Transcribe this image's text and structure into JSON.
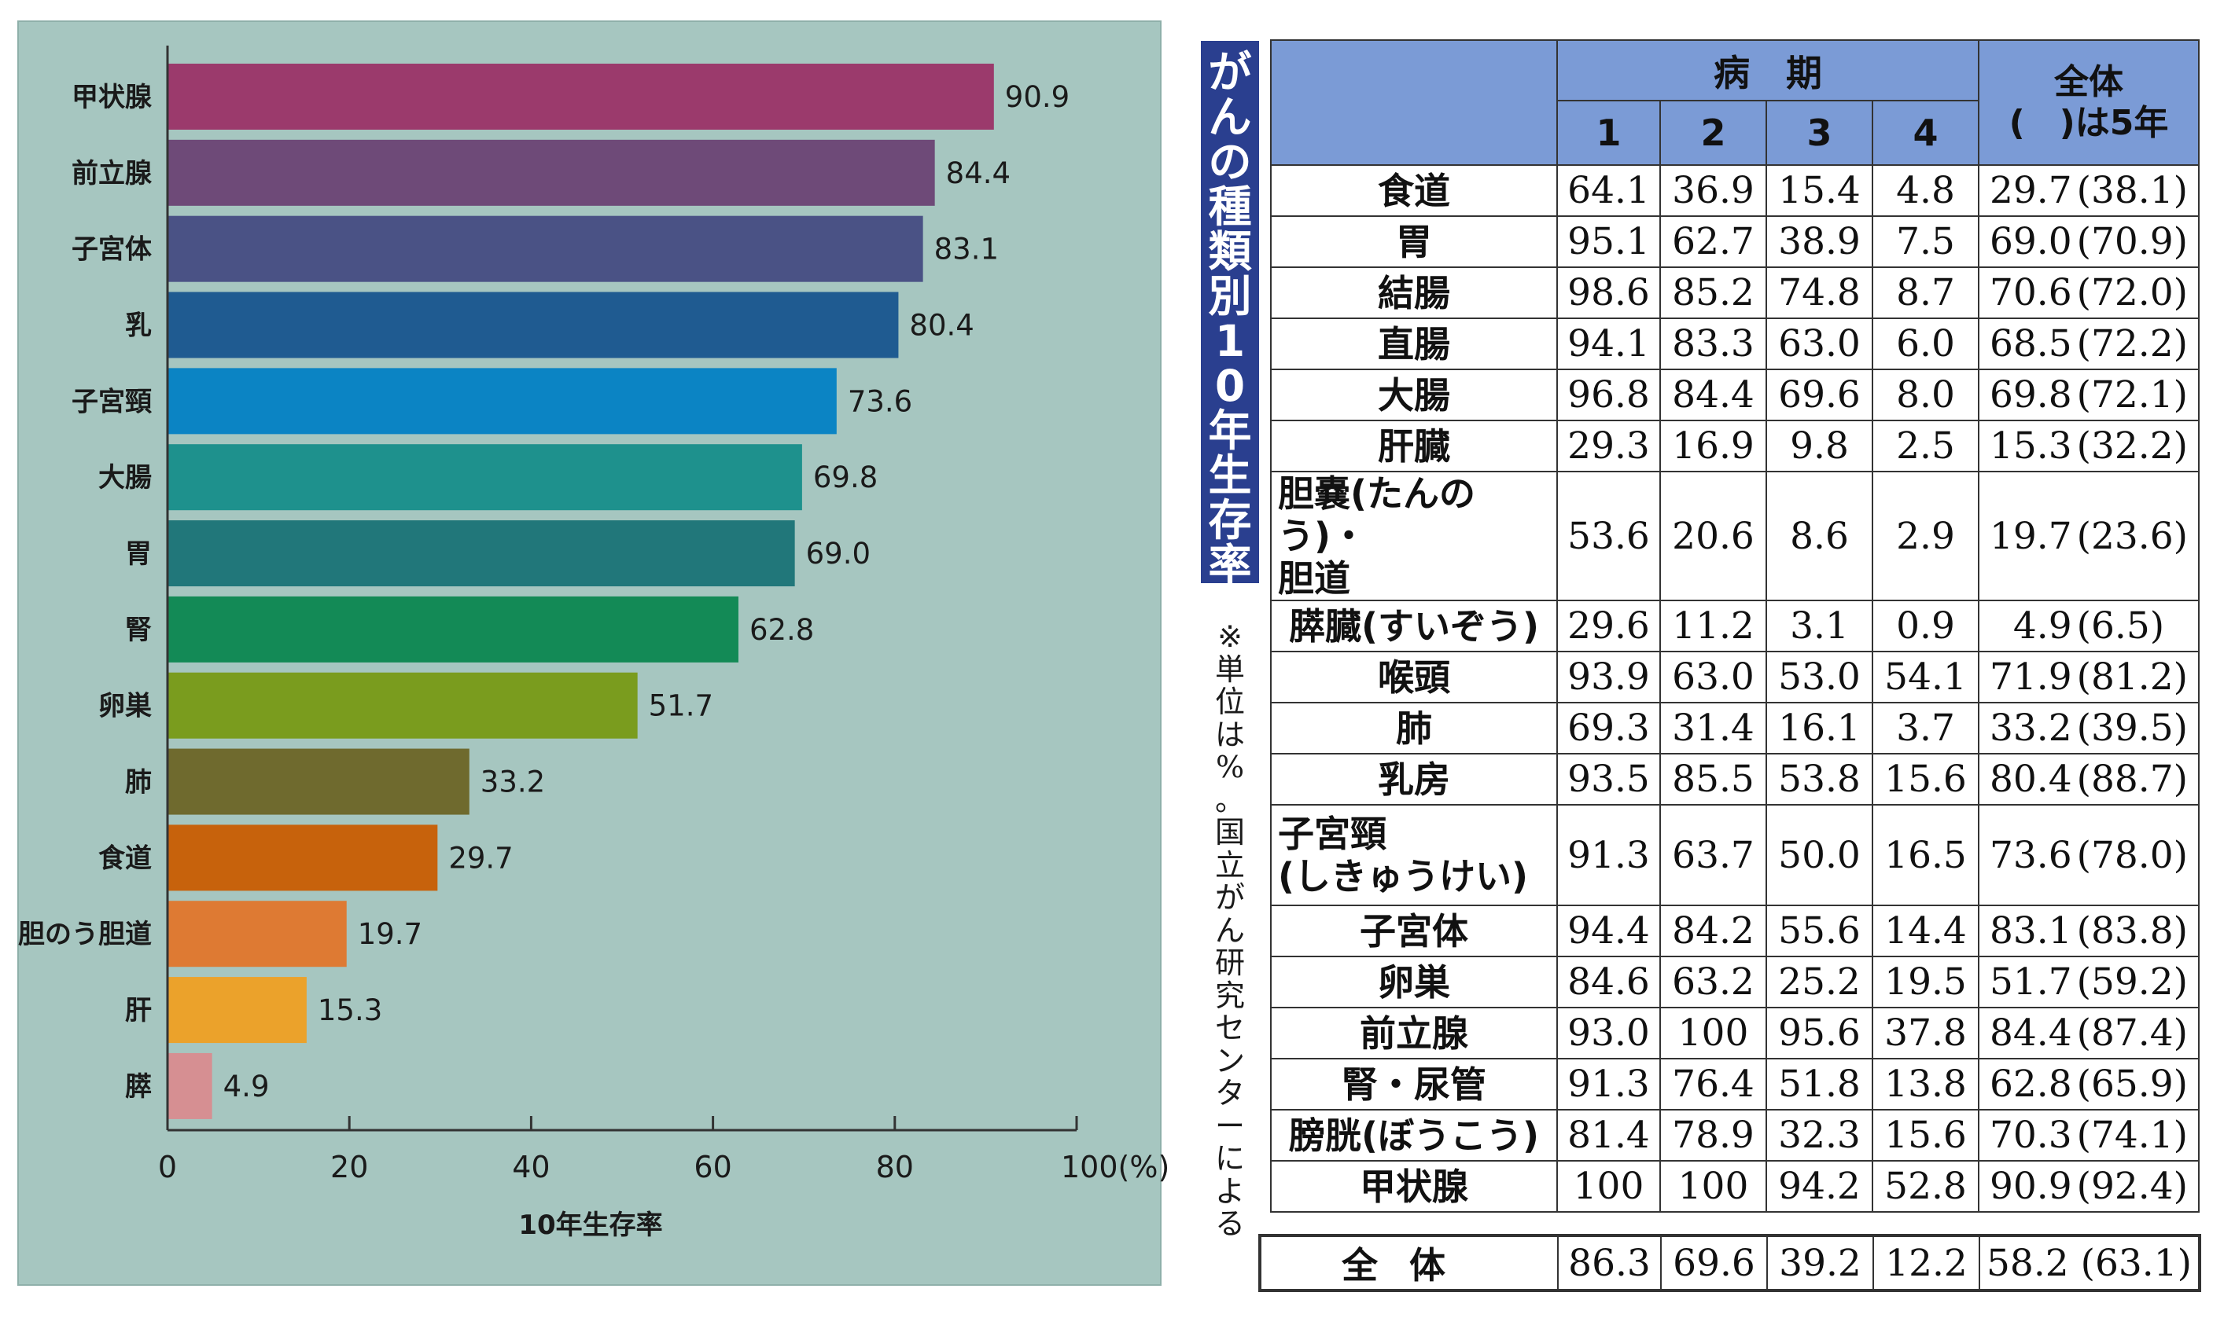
{
  "chart_data": {
    "type": "bar",
    "orientation": "horizontal",
    "categories": [
      "甲状腺",
      "前立腺",
      "子宮体",
      "乳",
      "子宮頸",
      "大腸",
      "胃",
      "腎",
      "卵巣",
      "肺",
      "食道",
      "胆のう胆道",
      "肝",
      "膵"
    ],
    "values": [
      90.9,
      84.4,
      83.1,
      80.4,
      73.6,
      69.8,
      69.0,
      62.8,
      51.7,
      33.2,
      29.7,
      19.7,
      15.3,
      4.9
    ],
    "value_labels": [
      "90.9",
      "84.4",
      "83.1",
      "80.4",
      "73.6",
      "69.8",
      "69.0",
      "62.8",
      "51.7",
      "33.2",
      "29.7",
      "19.7",
      "15.3",
      "4.9"
    ],
    "colors": [
      "#9b3a6c",
      "#6e4a78",
      "#4a5285",
      "#1f5b91",
      "#0b84c4",
      "#1e918d",
      "#21777a",
      "#138a56",
      "#7a9c1e",
      "#6f6a2e",
      "#c7620c",
      "#de7a33",
      "#eba22b",
      "#d68f92"
    ],
    "xticks": [
      "0",
      "20",
      "40",
      "60",
      "80",
      "100(%)"
    ],
    "xlim": [
      0,
      100
    ],
    "xlabel": "10年生存率",
    "ylabel": "",
    "title": "",
    "grid": false
  },
  "table": {
    "title_chars": [
      "が",
      "ん",
      "の",
      "種",
      "類",
      "別",
      "1",
      "0",
      "年",
      "生",
      "存",
      "率"
    ],
    "note_chars": [
      "※",
      "単",
      "位",
      "は",
      "%",
      "。",
      "国",
      "立",
      "が",
      "ん",
      "研",
      "究",
      "セ",
      "ン",
      "タ",
      "ー",
      "に",
      "よ",
      "る"
    ],
    "header": {
      "stage_label": "病　期",
      "stages": [
        "1",
        "2",
        "3",
        "4"
      ],
      "total_line1": "全体",
      "total_line2": "(　)は5年"
    },
    "rows": [
      {
        "name": "食道",
        "s1": "64.1",
        "s2": "36.9",
        "s3": "15.4",
        "s4": "4.8",
        "total": "29.7",
        "five": "(38.1)"
      },
      {
        "name": "胃",
        "s1": "95.1",
        "s2": "62.7",
        "s3": "38.9",
        "s4": "7.5",
        "total": "69.0",
        "five": "(70.9)"
      },
      {
        "name": "結腸",
        "s1": "98.6",
        "s2": "85.2",
        "s3": "74.8",
        "s4": "8.7",
        "total": "70.6",
        "five": "(72.0)"
      },
      {
        "name": "直腸",
        "s1": "94.1",
        "s2": "83.3",
        "s3": "63.0",
        "s4": "6.0",
        "total": "68.5",
        "five": "(72.2)"
      },
      {
        "name": "大腸",
        "s1": "96.8",
        "s2": "84.4",
        "s3": "69.6",
        "s4": "8.0",
        "total": "69.8",
        "five": "(72.1)"
      },
      {
        "name": "肝臓",
        "s1": "29.3",
        "s2": "16.9",
        "s3": "9.8",
        "s4": "2.5",
        "total": "15.3",
        "five": "(32.2)"
      },
      {
        "name": "胆嚢(たんのう)・",
        "name2": "胆道",
        "s1": "53.6",
        "s2": "20.6",
        "s3": "8.6",
        "s4": "2.9",
        "total": "19.7",
        "five": "(23.6)"
      },
      {
        "name": "膵臓(すいぞう)",
        "s1": "29.6",
        "s2": "11.2",
        "s3": "3.1",
        "s4": "0.9",
        "total": "4.9",
        "five": "(6.5)"
      },
      {
        "name": "喉頭",
        "s1": "93.9",
        "s2": "63.0",
        "s3": "53.0",
        "s4": "54.1",
        "total": "71.9",
        "five": "(81.2)"
      },
      {
        "name": "肺",
        "s1": "69.3",
        "s2": "31.4",
        "s3": "16.1",
        "s4": "3.7",
        "total": "33.2",
        "five": "(39.5)"
      },
      {
        "name": "乳房",
        "s1": "93.5",
        "s2": "85.5",
        "s3": "53.8",
        "s4": "15.6",
        "total": "80.4",
        "five": "(88.7)"
      },
      {
        "name": "子宮頸",
        "name2": "(しきゅうけい)",
        "s1": "91.3",
        "s2": "63.7",
        "s3": "50.0",
        "s4": "16.5",
        "total": "73.6",
        "five": "(78.0)"
      },
      {
        "name": "子宮体",
        "s1": "94.4",
        "s2": "84.2",
        "s3": "55.6",
        "s4": "14.4",
        "total": "83.1",
        "five": "(83.8)"
      },
      {
        "name": "卵巣",
        "s1": "84.6",
        "s2": "63.2",
        "s3": "25.2",
        "s4": "19.5",
        "total": "51.7",
        "five": "(59.2)"
      },
      {
        "name": "前立腺",
        "s1": "93.0",
        "s2": "100",
        "s3": "95.6",
        "s4": "37.8",
        "total": "84.4",
        "five": "(87.4)"
      },
      {
        "name": "腎・尿管",
        "s1": "91.3",
        "s2": "76.4",
        "s3": "51.8",
        "s4": "13.8",
        "total": "62.8",
        "five": "(65.9)"
      },
      {
        "name": "膀胱(ぼうこう)",
        "s1": "81.4",
        "s2": "78.9",
        "s3": "32.3",
        "s4": "15.6",
        "total": "70.3",
        "five": "(74.1)"
      },
      {
        "name": "甲状腺",
        "s1": "100",
        "s2": "100",
        "s3": "94.2",
        "s4": "52.8",
        "total": "90.9",
        "five": "(92.4)"
      }
    ],
    "overall": {
      "name": "全体",
      "s1": "86.3",
      "s2": "69.6",
      "s3": "39.2",
      "s4": "12.2",
      "total": "58.2",
      "five": "(63.1)"
    }
  }
}
